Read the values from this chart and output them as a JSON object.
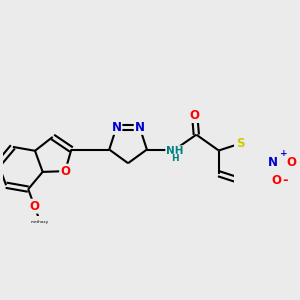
{
  "bg_color": "#ebebeb",
  "bond_color": "#000000",
  "bond_width": 1.5,
  "atom_colors": {
    "O": "#ff0000",
    "N": "#0000cd",
    "S": "#cccc00",
    "C": "#000000",
    "H": "#008080",
    "plus": "#0000cd",
    "minus": "#ff0000"
  },
  "font_size": 8.5
}
